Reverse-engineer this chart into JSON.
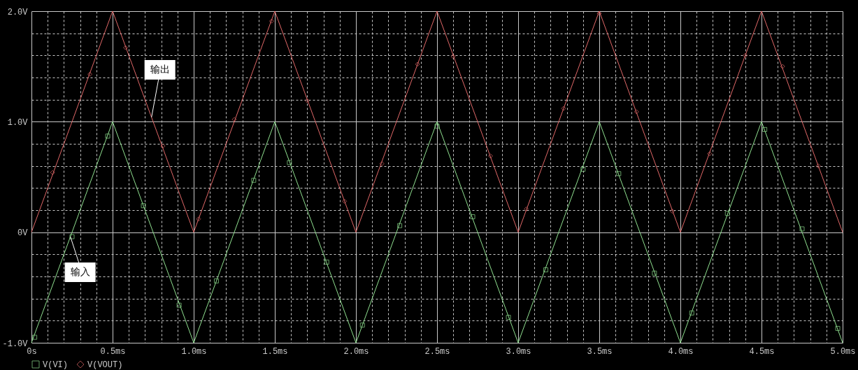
{
  "chart_data": {
    "type": "line",
    "xlim": [
      0,
      5
    ],
    "xticks": [
      {
        "value": 0,
        "label": "0s"
      },
      {
        "value": 0.1,
        "label": null
      },
      {
        "value": 0.2,
        "label": null
      },
      {
        "value": 0.3,
        "label": null
      },
      {
        "value": 0.4,
        "label": null
      },
      {
        "value": 0.5,
        "label": "0.5ms"
      },
      {
        "value": 0.6,
        "label": null
      },
      {
        "value": 0.7,
        "label": null
      },
      {
        "value": 0.8,
        "label": null
      },
      {
        "value": 0.9,
        "label": null
      },
      {
        "value": 1,
        "label": "1.0ms"
      },
      {
        "value": 1.1,
        "label": null
      },
      {
        "value": 1.2,
        "label": null
      },
      {
        "value": 1.3,
        "label": null
      },
      {
        "value": 1.4,
        "label": null
      },
      {
        "value": 1.5,
        "label": "1.5ms"
      },
      {
        "value": 1.6,
        "label": null
      },
      {
        "value": 1.7,
        "label": null
      },
      {
        "value": 1.8,
        "label": null
      },
      {
        "value": 1.9,
        "label": null
      },
      {
        "value": 2,
        "label": "2.0ms"
      },
      {
        "value": 2.1,
        "label": null
      },
      {
        "value": 2.2,
        "label": null
      },
      {
        "value": 2.3,
        "label": null
      },
      {
        "value": 2.4,
        "label": null
      },
      {
        "value": 2.5,
        "label": "2.5ms"
      },
      {
        "value": 2.6,
        "label": null
      },
      {
        "value": 2.7,
        "label": null
      },
      {
        "value": 2.8,
        "label": null
      },
      {
        "value": 2.9,
        "label": null
      },
      {
        "value": 3,
        "label": "3.0ms"
      },
      {
        "value": 3.1,
        "label": null
      },
      {
        "value": 3.2,
        "label": null
      },
      {
        "value": 3.3,
        "label": null
      },
      {
        "value": 3.4,
        "label": null
      },
      {
        "value": 3.5,
        "label": "3.5ms"
      },
      {
        "value": 3.6,
        "label": null
      },
      {
        "value": 3.7,
        "label": null
      },
      {
        "value": 3.8,
        "label": null
      },
      {
        "value": 3.9,
        "label": null
      },
      {
        "value": 4,
        "label": "4.0ms"
      },
      {
        "value": 4.1,
        "label": null
      },
      {
        "value": 4.2,
        "label": null
      },
      {
        "value": 4.3,
        "label": null
      },
      {
        "value": 4.4,
        "label": null
      },
      {
        "value": 4.5,
        "label": "4.5ms"
      },
      {
        "value": 4.6,
        "label": null
      },
      {
        "value": 4.7,
        "label": null
      },
      {
        "value": 4.8,
        "label": null
      },
      {
        "value": 4.9,
        "label": null
      },
      {
        "value": 5,
        "label": "5.0ms"
      }
    ],
    "ylim": [
      -1,
      2
    ],
    "yticks": [
      {
        "value": -1,
        "label": "-1.0V"
      },
      {
        "value": -0.8,
        "label": null
      },
      {
        "value": -0.6,
        "label": null
      },
      {
        "value": -0.4,
        "label": null
      },
      {
        "value": -0.2,
        "label": null
      },
      {
        "value": 0,
        "label": "0V"
      },
      {
        "value": 0.2,
        "label": null
      },
      {
        "value": 0.4,
        "label": null
      },
      {
        "value": 0.6,
        "label": null
      },
      {
        "value": 0.8,
        "label": null
      },
      {
        "value": 1,
        "label": "1.0V"
      },
      {
        "value": 1.2,
        "label": null
      },
      {
        "value": 1.4,
        "label": null
      },
      {
        "value": 1.6,
        "label": null
      },
      {
        "value": 1.8,
        "label": null
      },
      {
        "value": 2,
        "label": "2.0V"
      }
    ],
    "grid": true,
    "legend": "bottom left",
    "series": [
      {
        "color": "#90e090",
        "x": [
          0,
          0.5,
          1,
          1.5,
          2,
          2.5,
          3,
          3.5,
          4,
          4.5,
          5
        ],
        "values": [
          -1,
          1,
          -1,
          1,
          -1,
          1,
          -1,
          1,
          -1,
          1,
          -1
        ]
      },
      {
        "color": "#e06868",
        "x": [
          0,
          0.5,
          1,
          1.5,
          2,
          2.5,
          3,
          3.5,
          4,
          4.5,
          5
        ],
        "values": [
          0,
          2,
          0,
          2,
          0,
          2,
          0,
          2,
          0,
          2,
          0
        ]
      },
      {
        "type": "scatter",
        "name": "V(VI)",
        "color": "#90e090",
        "marker": "square",
        "x": [
          0.02,
          0.25,
          0.47,
          0.69,
          0.91,
          1.14,
          1.37,
          1.59,
          1.82,
          2.04,
          2.27,
          2.5,
          2.72,
          2.94,
          3.17,
          3.4,
          3.62,
          3.84,
          4.07,
          4.29,
          4.52,
          4.75,
          4.97
        ],
        "values": [
          -0.95,
          -0.04,
          0.87,
          0.24,
          -0.66,
          -0.44,
          0.47,
          0.63,
          -0.27,
          -0.84,
          0.06,
          0.96,
          0.14,
          -0.77,
          -0.34,
          0.57,
          0.53,
          -0.37,
          -0.73,
          0.17,
          0.93,
          0.03,
          -0.87
        ]
      },
      {
        "type": "scatter",
        "name": "V(VOUT)",
        "color": "#e06868",
        "marker": "diamond",
        "x": [
          0.13,
          0.36,
          0.58,
          0.81,
          1.03,
          1.25,
          1.48,
          1.7,
          1.93,
          2.16,
          2.38,
          2.6,
          2.83,
          3.05,
          3.28,
          3.5,
          3.73,
          3.95,
          4.18,
          4.4,
          4.63,
          4.85
        ],
        "values": [
          0.54,
          1.43,
          1.67,
          0.78,
          0.12,
          1.02,
          1.91,
          1.19,
          0.28,
          0.62,
          1.52,
          1.59,
          0.69,
          0.21,
          1.12,
          1.98,
          1.09,
          0.19,
          0.71,
          1.6,
          1.5,
          0.6
        ]
      }
    ],
    "annotations": [
      {
        "text": "输出",
        "x": 0.74,
        "y": 1.04
      },
      {
        "text": "输入",
        "x": 0.24,
        "y": -0.04
      }
    ]
  }
}
